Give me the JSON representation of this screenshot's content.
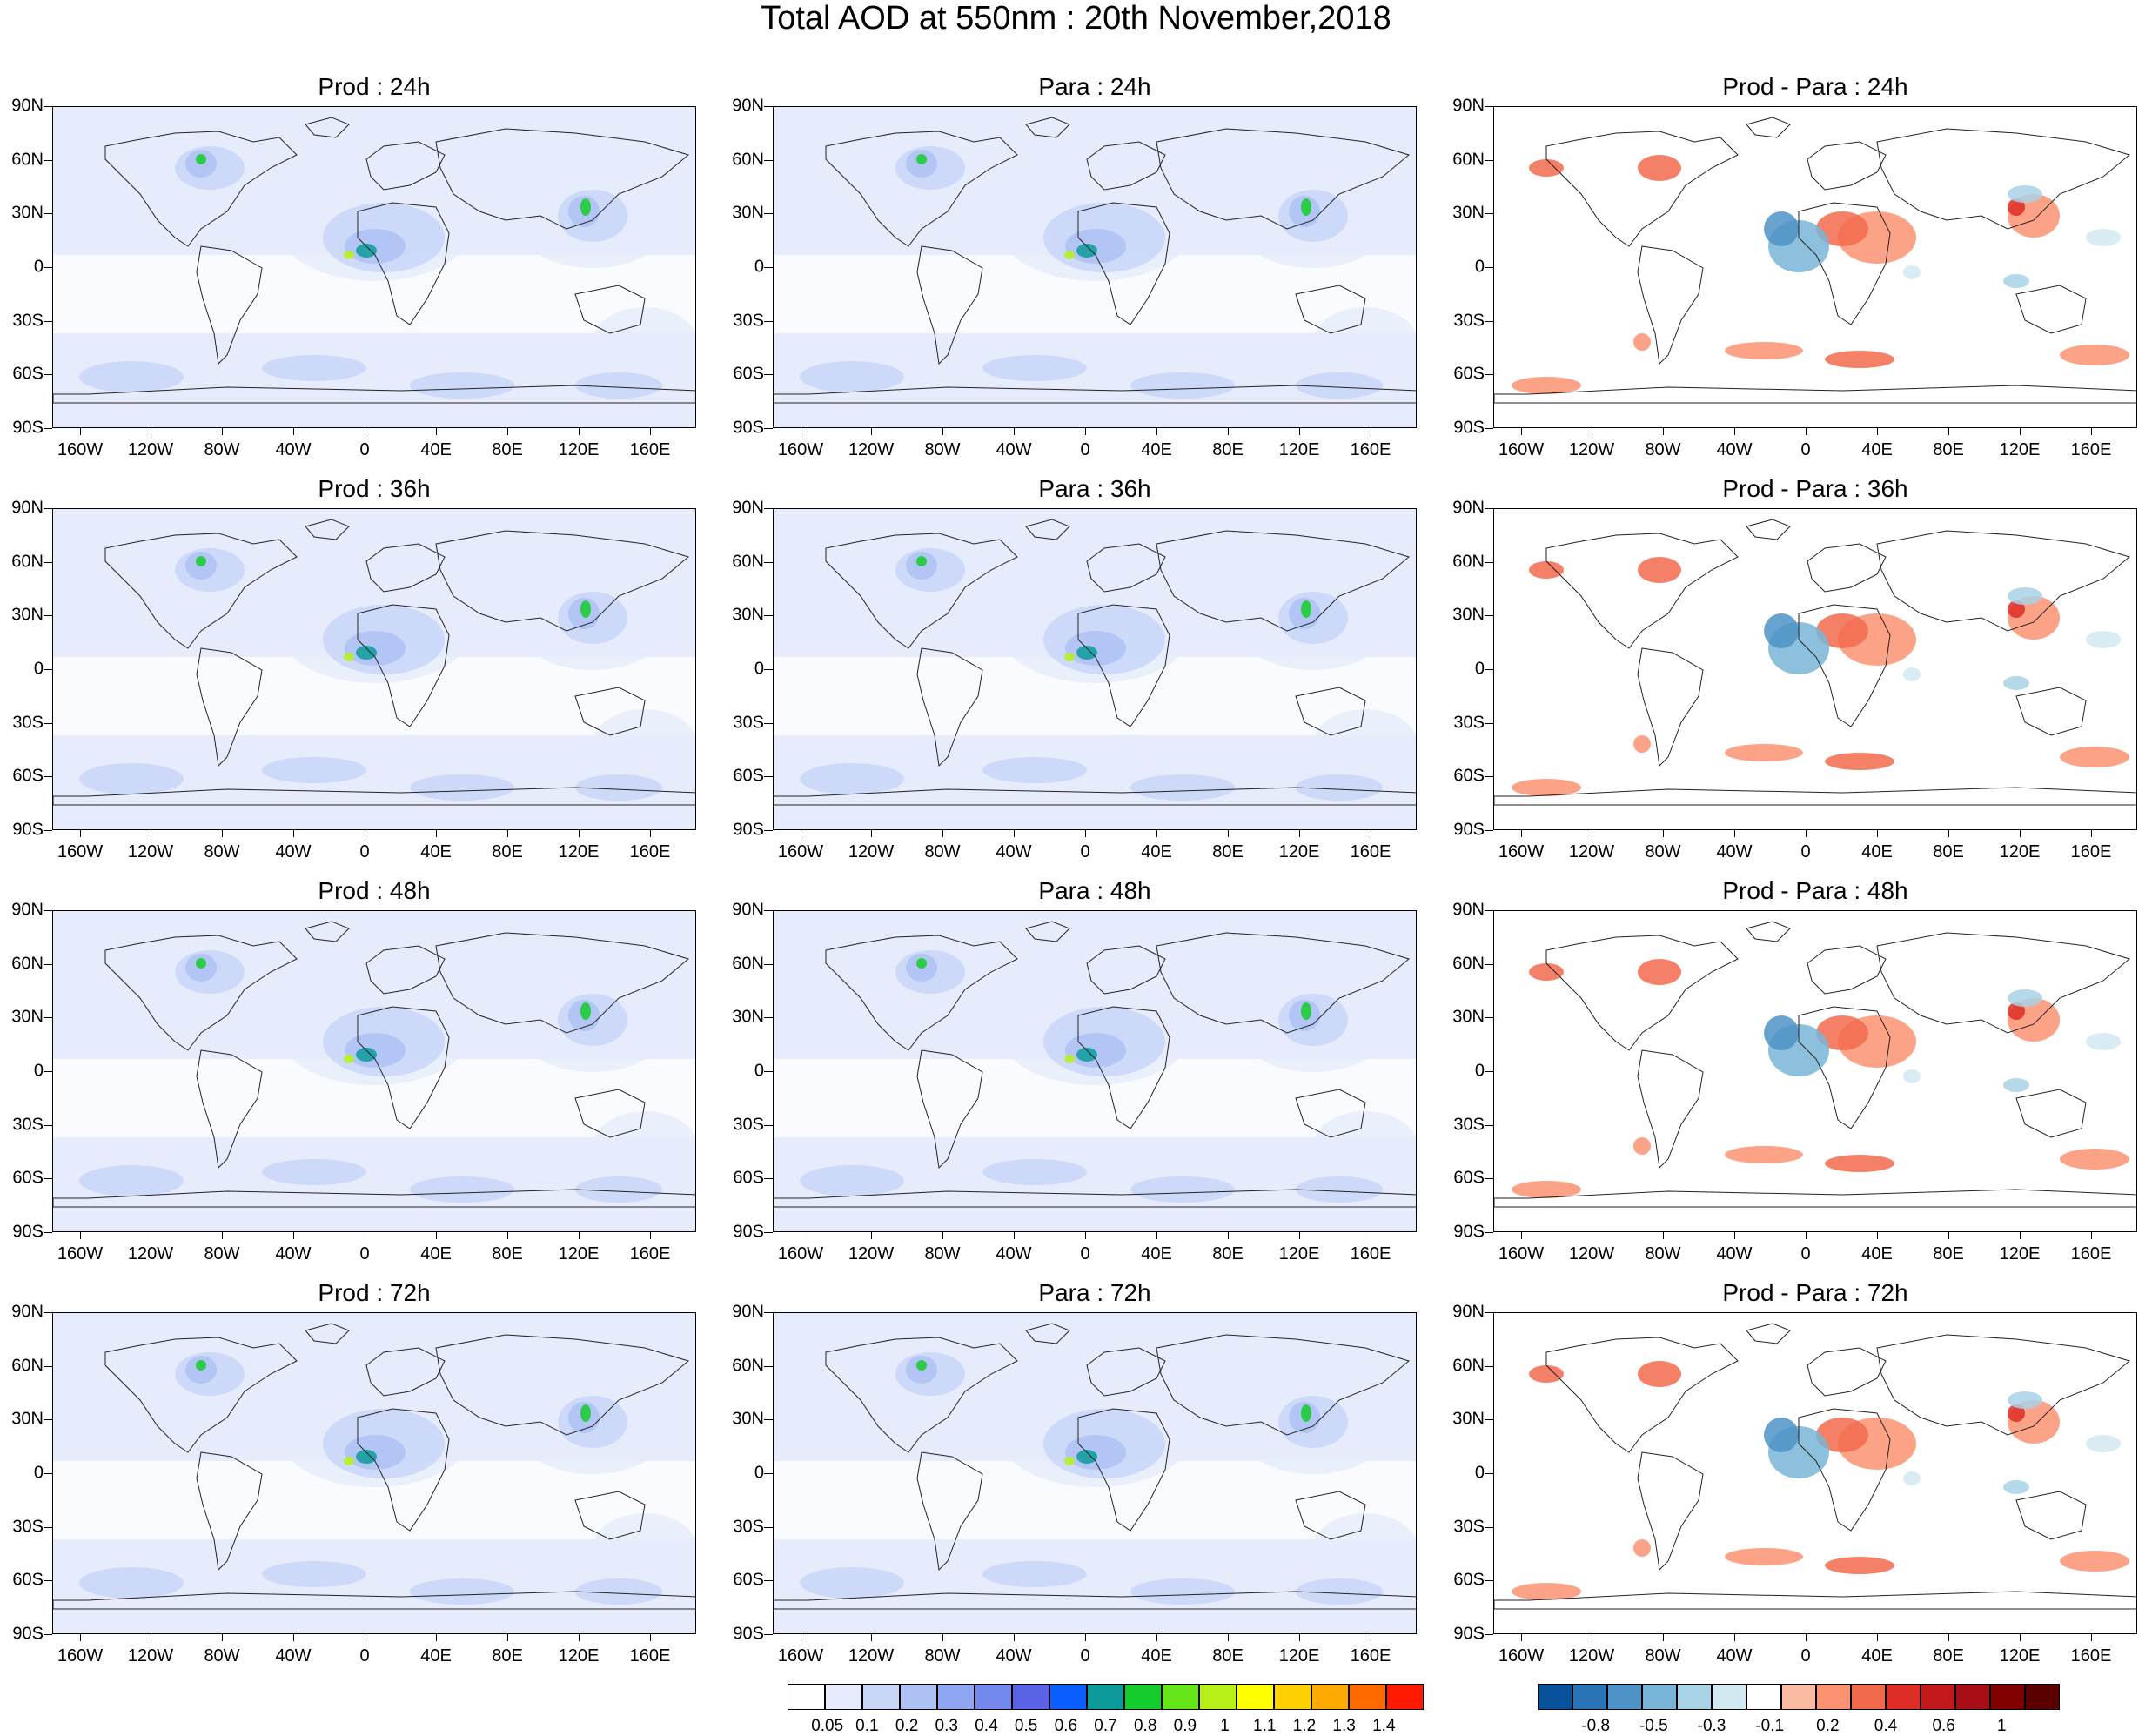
{
  "title": "Total AOD at 550nm : 20th November,2018",
  "lat_labels": [
    "90N",
    "60N",
    "30N",
    "0",
    "30S",
    "60S",
    "90S"
  ],
  "lon_labels": [
    "160W",
    "120W",
    "80W",
    "40W",
    "0",
    "40E",
    "80E",
    "120E",
    "160E"
  ],
  "panels": [
    {
      "title": "Prod : 24h",
      "kind": "aod"
    },
    {
      "title": "Para : 24h",
      "kind": "aod"
    },
    {
      "title": "Prod - Para : 24h",
      "kind": "diff"
    },
    {
      "title": "Prod : 36h",
      "kind": "aod"
    },
    {
      "title": "Para : 36h",
      "kind": "aod"
    },
    {
      "title": "Prod - Para : 36h",
      "kind": "diff"
    },
    {
      "title": "Prod : 48h",
      "kind": "aod"
    },
    {
      "title": "Para : 48h",
      "kind": "aod"
    },
    {
      "title": "Prod - Para : 48h",
      "kind": "diff"
    },
    {
      "title": "Prod : 72h",
      "kind": "aod"
    },
    {
      "title": "Para : 72h",
      "kind": "aod"
    },
    {
      "title": "Prod - Para : 72h",
      "kind": "diff"
    }
  ],
  "aod_colorbar": {
    "labels": [
      "0.05",
      "0.1",
      "0.2",
      "0.3",
      "0.4",
      "0.5",
      "0.6",
      "0.7",
      "0.8",
      "0.9",
      "1",
      "1.1",
      "1.2",
      "1.3",
      "1.4"
    ],
    "colors": [
      "#ffffff",
      "#e6ecfb",
      "#c8d6f8",
      "#aec1f5",
      "#8fa6f2",
      "#7389ee",
      "#5a63e6",
      "#0a5dff",
      "#0c9a9a",
      "#14cc2a",
      "#66e61a",
      "#b8f01a",
      "#ffff00",
      "#ffd000",
      "#ffaa00",
      "#ff6a00",
      "#ff1a00"
    ]
  },
  "diff_colorbar": {
    "labels": [
      "-0.8",
      "-0.5",
      "-0.3",
      "-0.1",
      "0.2",
      "0.4",
      "0.6",
      "1"
    ],
    "colors": [
      "#08519c",
      "#2873b6",
      "#4d93c7",
      "#78b5d7",
      "#a8d2e6",
      "#d2e9f2",
      "#ffffff",
      "#fcbba1",
      "#fc9272",
      "#f26a4c",
      "#de2d26",
      "#c2181c",
      "#a50f15",
      "#800000",
      "#5a0000"
    ]
  }
}
